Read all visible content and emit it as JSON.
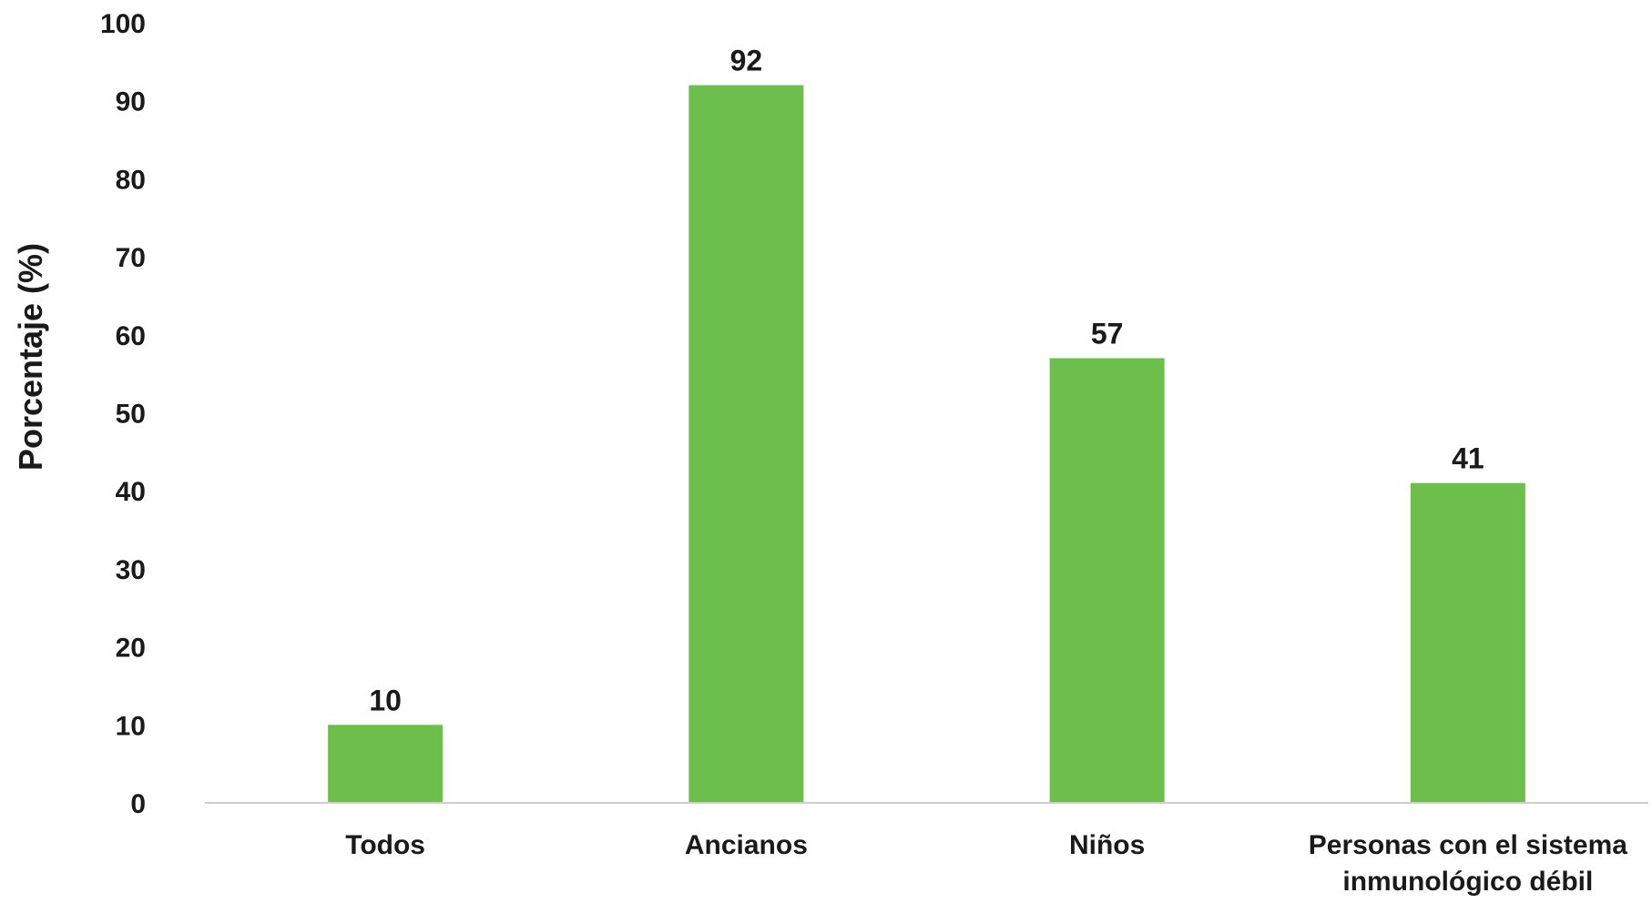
{
  "chart_data": {
    "type": "bar",
    "title": "",
    "xlabel": "",
    "ylabel": "Porcentaje (%)",
    "ylim": [
      0,
      100
    ],
    "yticks": [
      0,
      10,
      20,
      30,
      40,
      50,
      60,
      70,
      80,
      90,
      100
    ],
    "grid": false,
    "legend": "none",
    "categories": [
      [
        "Todos"
      ],
      [
        "Ancianos"
      ],
      [
        "Niños"
      ],
      [
        "Personas con el sistema",
        "inmunológico débil"
      ]
    ],
    "values": [
      10,
      92,
      57,
      41
    ],
    "data_labels": [
      "10",
      "92",
      "57",
      "41"
    ],
    "colors": {
      "bar": "#6cbf4a",
      "axis": "#cfcfcf",
      "text": "#1a1a1a"
    }
  }
}
